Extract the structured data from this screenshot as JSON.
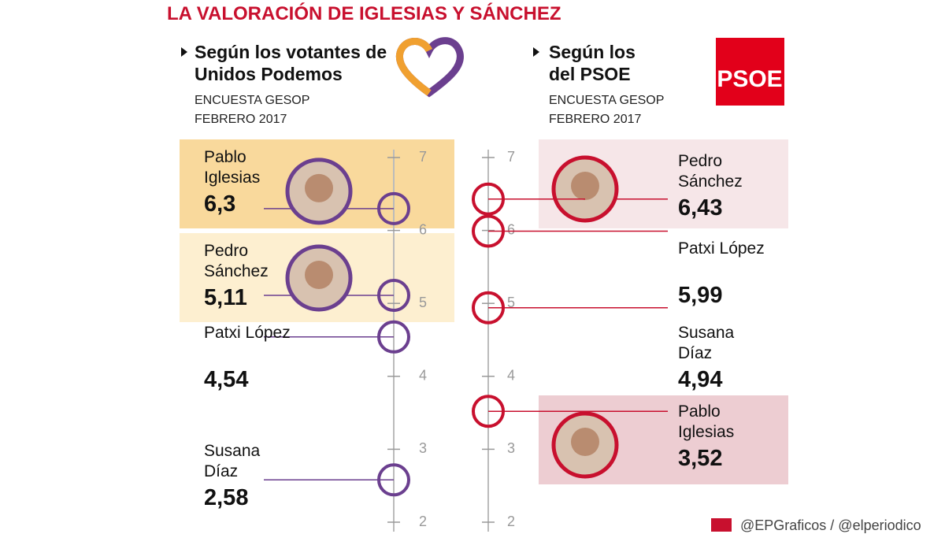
{
  "title": "LA VALORACIÓN DE IGLESIAS Y SÁNCHEZ",
  "footer": "@EPGraficos / @elperiodico",
  "chart_data": [
    {
      "type": "dot",
      "title": "Según los votantes de Unidos Podemos",
      "subtitle": "ENCUESTA GESOP FEBRERO 2017",
      "categories": [
        "Pablo Iglesias",
        "Pedro Sánchez",
        "Patxi López",
        "Susana Díaz"
      ],
      "values": [
        6.3,
        5.11,
        4.54,
        2.58
      ],
      "value_labels": [
        "6,3",
        "5,11",
        "4,54",
        "2,58"
      ],
      "color": "#6b3f8f",
      "highlight_colors": [
        "#f9d99c",
        "#fdefd0",
        null,
        null
      ],
      "ylim": [
        2,
        7
      ],
      "yticks": [
        2,
        3,
        4,
        5,
        6,
        7
      ]
    },
    {
      "type": "dot",
      "title": "Según los del PSOE",
      "subtitle": "ENCUESTA GESOP FEBRERO 2017",
      "logo_text": "PSOE",
      "categories": [
        "Pedro Sánchez",
        "Patxi López",
        "Susana Díaz",
        "Pablo Iglesias"
      ],
      "values": [
        6.43,
        5.99,
        4.94,
        3.52
      ],
      "value_labels": [
        "6,43",
        "5,99",
        "4,94",
        "3,52"
      ],
      "color": "#c8102e",
      "highlight_colors": [
        "#f6e6e8",
        null,
        null,
        "#edcdd2"
      ],
      "ylim": [
        2,
        7
      ],
      "yticks": [
        2,
        3,
        4,
        5,
        6,
        7
      ]
    }
  ]
}
